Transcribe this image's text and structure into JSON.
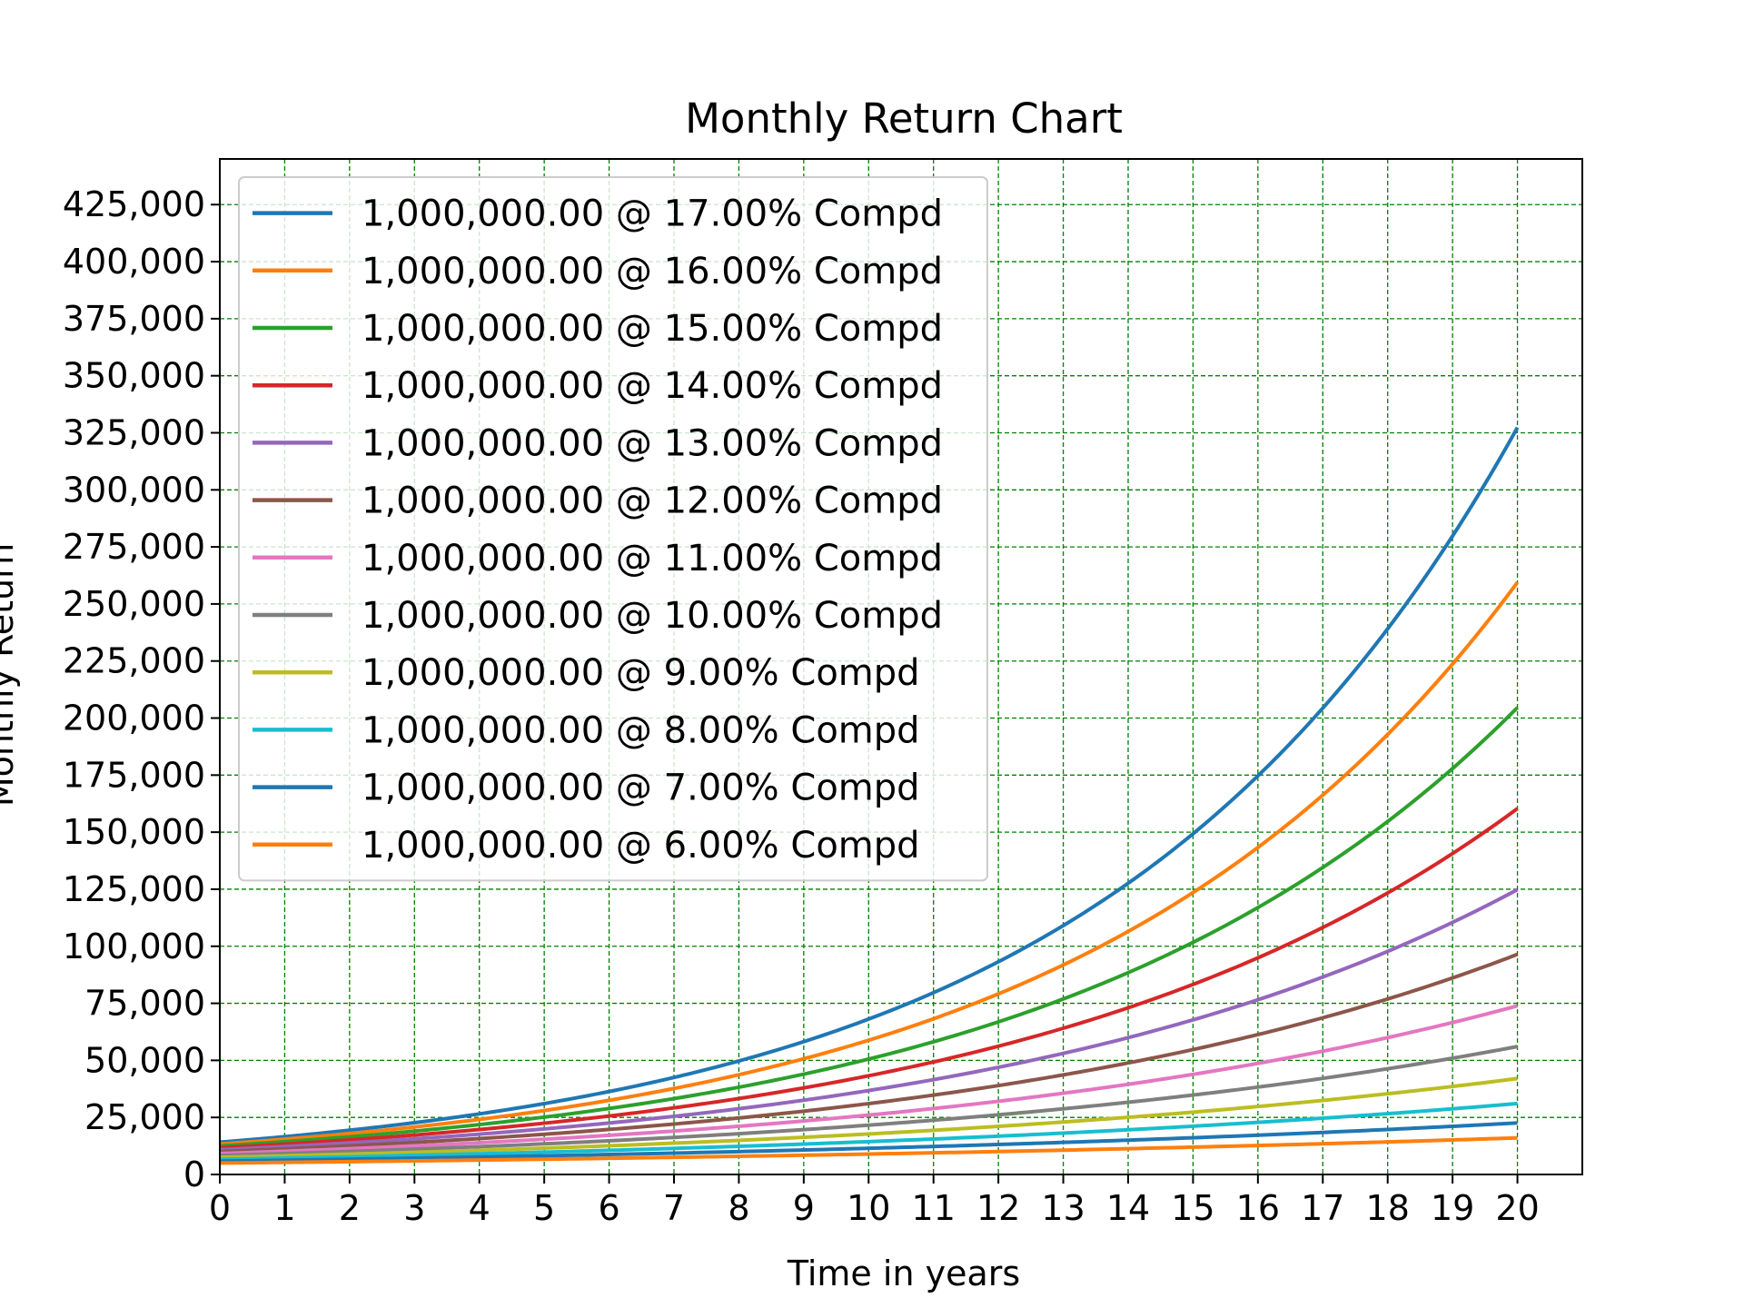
{
  "chart_data": {
    "type": "line",
    "title": "Monthly Return Chart",
    "xlabel": "Time in years",
    "ylabel": "Monthly Return",
    "xlim": [
      0,
      21
    ],
    "ylim": [
      0,
      445000
    ],
    "x_ticks": [
      0,
      1,
      2,
      3,
      4,
      5,
      6,
      7,
      8,
      9,
      10,
      11,
      12,
      13,
      14,
      15,
      16,
      17,
      18,
      19,
      20
    ],
    "y_ticks": [
      0,
      25000,
      50000,
      75000,
      100000,
      125000,
      150000,
      175000,
      200000,
      225000,
      250000,
      275000,
      300000,
      325000,
      350000,
      375000,
      400000,
      425000
    ],
    "y_tick_labels": [
      "0",
      "25,000",
      "50,000",
      "75,000",
      "100,000",
      "125,000",
      "150,000",
      "175,000",
      "200,000",
      "225,000",
      "250,000",
      "275,000",
      "300,000",
      "325,000",
      "350,000",
      "375,000",
      "400,000",
      "425,000"
    ],
    "grid": true,
    "grid_color": "#008000",
    "legend_position": "upper-left",
    "principal": 1000000,
    "series": [
      {
        "name": "1,000,000.00 @ 17.00% Compd",
        "rate": 17,
        "color": "#1f77b4"
      },
      {
        "name": "1,000,000.00 @ 16.00% Compd",
        "rate": 16,
        "color": "#ff7f0e"
      },
      {
        "name": "1,000,000.00 @ 15.00% Compd",
        "rate": 15,
        "color": "#2ca02c"
      },
      {
        "name": "1,000,000.00 @ 14.00% Compd",
        "rate": 14,
        "color": "#d62728"
      },
      {
        "name": "1,000,000.00 @ 13.00% Compd",
        "rate": 13,
        "color": "#9467bd"
      },
      {
        "name": "1,000,000.00 @ 12.00% Compd",
        "rate": 12,
        "color": "#8c564b"
      },
      {
        "name": "1,000,000.00 @ 11.00% Compd",
        "rate": 11,
        "color": "#e377c2"
      },
      {
        "name": "1,000,000.00 @ 10.00% Compd",
        "rate": 10,
        "color": "#7f7f7f"
      },
      {
        "name": "1,000,000.00 @ 9.00% Compd",
        "rate": 9,
        "color": "#bcbd22"
      },
      {
        "name": "1,000,000.00 @ 8.00% Compd",
        "rate": 8,
        "color": "#17becf"
      },
      {
        "name": "1,000,000.00 @ 7.00% Compd",
        "rate": 7,
        "color": "#1f77b4"
      },
      {
        "name": "1,000,000.00 @ 6.00% Compd",
        "rate": 6,
        "color": "#ff7f0e"
      }
    ]
  }
}
